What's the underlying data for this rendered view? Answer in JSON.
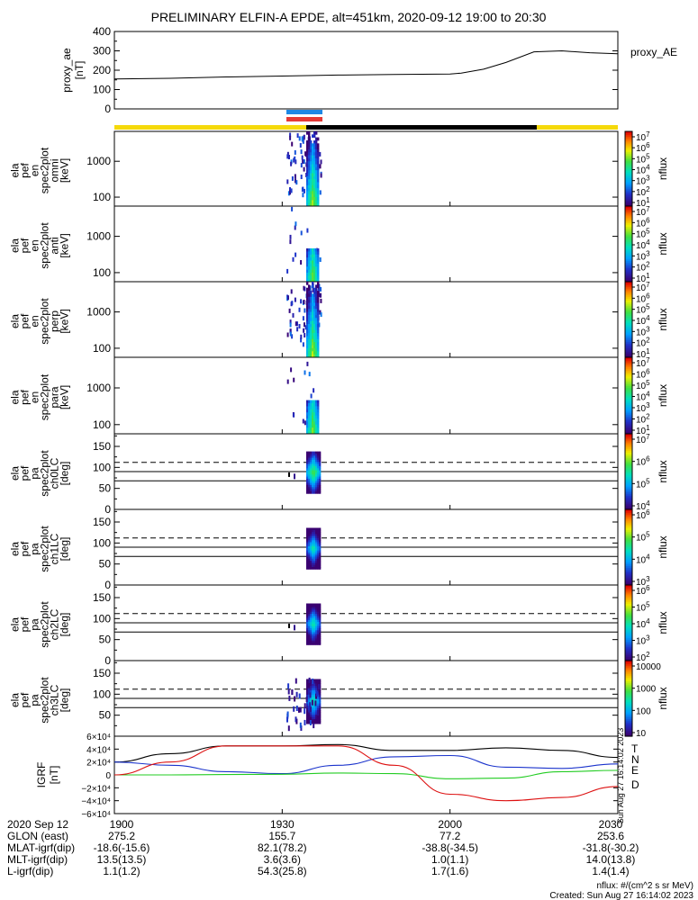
{
  "title": "PRELIMINARY ELFIN-A EPDE, alt=451km, 2020-09-12 19:00 to 20:30",
  "colors": {
    "yellow": "#f5d90a",
    "black": "#000000",
    "blue": "#1e88e5",
    "red": "#e53935",
    "T": "#000000",
    "N": "#1a33cc",
    "E": "#22cc22",
    "D": "#dd1111"
  },
  "chart_data": [
    {
      "type": "line",
      "panel": "proxy_ae",
      "ylabel": "proxy_ae [nT]",
      "legend": "proxy_AE",
      "ylim": [
        0,
        400
      ],
      "yticks": [
        "400",
        "300",
        "200",
        "100",
        "0"
      ],
      "xlim": [
        0,
        90
      ],
      "x": [
        0,
        10,
        20,
        30,
        40,
        50,
        60,
        62,
        66,
        70,
        75,
        80,
        85,
        90
      ],
      "values": [
        155,
        158,
        165,
        170,
        175,
        178,
        180,
        185,
        205,
        240,
        295,
        300,
        290,
        285
      ]
    },
    {
      "type": "heatmap",
      "panel": "omni",
      "ylabel": [
        "ela",
        "pef",
        "en",
        "spec2plot",
        "omni",
        "[keV]"
      ],
      "yticks": [
        "1000",
        "100"
      ],
      "colorbar": {
        "label": "nflux",
        "ticks": [
          "10^7",
          "10^6",
          "10^5",
          "10^4",
          "10^3",
          "10^2",
          "10^1"
        ]
      }
    },
    {
      "type": "heatmap",
      "panel": "anti",
      "ylabel": [
        "ela",
        "pef",
        "en",
        "spec2plot",
        "anti",
        "[keV]"
      ],
      "yticks": [
        "1000",
        "100"
      ],
      "colorbar": {
        "label": "nflux",
        "ticks": [
          "10^7",
          "10^6",
          "10^5",
          "10^4",
          "10^3",
          "10^2",
          "10^1"
        ]
      }
    },
    {
      "type": "heatmap",
      "panel": "perp",
      "ylabel": [
        "ela",
        "pef",
        "en",
        "spec2plot",
        "perp",
        "[keV]"
      ],
      "yticks": [
        "1000",
        "100"
      ],
      "colorbar": {
        "label": "nflux",
        "ticks": [
          "10^7",
          "10^6",
          "10^5",
          "10^4",
          "10^3",
          "10^2",
          "10^1"
        ]
      }
    },
    {
      "type": "heatmap",
      "panel": "para",
      "ylabel": [
        "ela",
        "pef",
        "en",
        "spec2plot",
        "para",
        "[keV]"
      ],
      "yticks": [
        "1000",
        "100"
      ],
      "colorbar": {
        "label": "nflux",
        "ticks": [
          "10^7",
          "10^6",
          "10^5",
          "10^4",
          "10^3",
          "10^2",
          "10^1"
        ]
      }
    },
    {
      "type": "heatmap",
      "panel": "ch0LC",
      "ylabel": [
        "ela",
        "pef",
        "pa",
        "spec2plot",
        "ch0LC",
        "[deg]"
      ],
      "yticks": [
        "150",
        "100",
        "50",
        "0"
      ],
      "colorbar": {
        "label": "nflux",
        "ticks": [
          "10^7",
          "10^6",
          "10^5",
          "10^4"
        ]
      }
    },
    {
      "type": "heatmap",
      "panel": "ch1LC",
      "ylabel": [
        "ela",
        "pef",
        "pa",
        "spec2plot",
        "ch1LC",
        "[deg]"
      ],
      "yticks": [
        "150",
        "100",
        "50",
        "0"
      ],
      "colorbar": {
        "label": "nflux",
        "ticks": [
          "10^6",
          "10^5",
          "10^4",
          "10^3"
        ]
      }
    },
    {
      "type": "heatmap",
      "panel": "ch2LC",
      "ylabel": [
        "ela",
        "pef",
        "pa",
        "spec2plot",
        "ch2LC",
        "[deg]"
      ],
      "yticks": [
        "150",
        "100",
        "50",
        "0"
      ],
      "colorbar": {
        "label": "nflux",
        "ticks": [
          "10^6",
          "10^5",
          "10^4",
          "10^3",
          "10^2"
        ]
      }
    },
    {
      "type": "heatmap",
      "panel": "ch3LC",
      "ylabel": [
        "ela",
        "pef",
        "pa",
        "spec2plot",
        "ch3LC",
        "[deg]"
      ],
      "yticks": [
        "150",
        "100",
        "50"
      ],
      "colorbar": {
        "label": "nflux",
        "ticks": [
          "10000",
          "1000",
          "100",
          "10"
        ]
      }
    },
    {
      "type": "line",
      "panel": "igrf",
      "ylabel": "IGRF [nT]",
      "yticks": [
        "6×10⁴",
        "4×10⁴",
        "2×10⁴",
        "0",
        "−2×10⁴",
        "−4×10⁴",
        "−6×10⁴"
      ],
      "ylim": [
        -60000,
        60000
      ],
      "xlim": [
        0,
        90
      ],
      "series": [
        {
          "name": "T",
          "x": [
            0,
            10,
            20,
            30,
            40,
            50,
            60,
            70,
            80,
            90
          ],
          "values": [
            20000,
            33000,
            45000,
            45000,
            47000,
            38000,
            38000,
            42000,
            38000,
            27000
          ]
        },
        {
          "name": "N",
          "x": [
            0,
            10,
            20,
            30,
            40,
            50,
            60,
            70,
            80,
            90
          ],
          "values": [
            20000,
            15000,
            5000,
            2000,
            15000,
            28000,
            30000,
            12000,
            10000,
            17000
          ]
        },
        {
          "name": "E",
          "x": [
            0,
            10,
            20,
            30,
            40,
            50,
            60,
            70,
            80,
            90
          ],
          "values": [
            0,
            0,
            500,
            1000,
            3000,
            2000,
            -6000,
            -5000,
            5000,
            7000
          ]
        },
        {
          "name": "D",
          "x": [
            0,
            10,
            20,
            30,
            40,
            50,
            60,
            70,
            80,
            90
          ],
          "values": [
            0,
            20000,
            45000,
            45000,
            45000,
            15000,
            -30000,
            -40000,
            -35000,
            -18000
          ]
        }
      ]
    }
  ],
  "xticks": [
    "1900",
    "1930",
    "2000",
    "2030"
  ],
  "footer_rows": [
    {
      "label": "2020 Sep 12",
      "values": [
        "1900",
        "1930",
        "2000",
        "2030"
      ]
    },
    {
      "label": "GLON (east)",
      "values": [
        "275.2",
        "155.7",
        "77.2",
        "253.6"
      ]
    },
    {
      "label": "MLAT-igrf(dip)",
      "values": [
        "-18.6(-15.6)",
        "82.1(78.2)",
        "-38.8(-34.5)",
        "-31.8(-30.2)"
      ]
    },
    {
      "label": "MLT-igrf(dip)",
      "values": [
        "13.5(13.5)",
        "3.6(3.6)",
        "1.0(1.1)",
        "14.0(13.8)"
      ]
    },
    {
      "label": "L-igrf(dip)",
      "values": [
        "1.1(1.2)",
        "54.3(25.8)",
        "1.7(1.6)",
        "1.4(1.4)"
      ]
    }
  ],
  "units_note": "nflux: #/(cm^2 s sr MeV)",
  "created": "Created: Sun Aug 27 16:14:02 2023",
  "side_stamp": "Sun Aug 27 16:14:02 2023"
}
